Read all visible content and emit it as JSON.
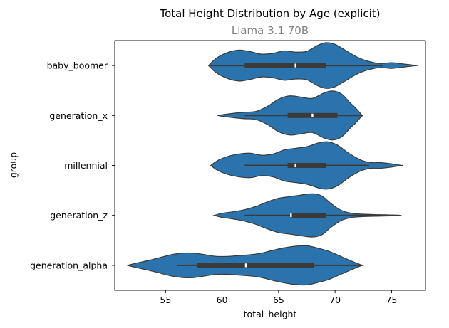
{
  "chart_data": {
    "type": "violin",
    "title": "Total Height Distribution by Age (explicit)",
    "subtitle": "Llama 3.1 70B",
    "xlabel": "total_height",
    "ylabel": "group",
    "xlim": [
      50.5,
      78
    ],
    "xticks": [
      55,
      60,
      65,
      70,
      75
    ],
    "orientation": "horizontal",
    "grid": false,
    "categories": [
      "baby_boomer",
      "generation_x",
      "millennial",
      "generation_z",
      "generation_alpha"
    ],
    "series": [
      {
        "category": "baby_boomer",
        "min": 58.8,
        "q1": 62.0,
        "median": 66.5,
        "q3": 69.2,
        "max": 77.2,
        "whisker_low": 58.8,
        "whisker_high": 74.2,
        "density": [
          [
            58.8,
            0.0
          ],
          [
            59.5,
            0.18
          ],
          [
            60.5,
            0.32
          ],
          [
            61.5,
            0.38
          ],
          [
            62.5,
            0.34
          ],
          [
            63.5,
            0.28
          ],
          [
            64.5,
            0.3
          ],
          [
            65.5,
            0.36
          ],
          [
            66.5,
            0.33
          ],
          [
            67.5,
            0.35
          ],
          [
            68.5,
            0.5
          ],
          [
            69.2,
            0.56
          ],
          [
            70.0,
            0.52
          ],
          [
            71.0,
            0.36
          ],
          [
            72.0,
            0.2
          ],
          [
            73.0,
            0.1
          ],
          [
            74.0,
            0.05
          ],
          [
            75.0,
            0.07
          ],
          [
            76.0,
            0.04
          ],
          [
            77.2,
            0.0
          ]
        ]
      },
      {
        "category": "generation_x",
        "min": 59.6,
        "q1": 65.8,
        "median": 68.0,
        "q3": 70.2,
        "max": 72.4,
        "whisker_low": 62.0,
        "whisker_high": 72.4,
        "density": [
          [
            59.6,
            0.0
          ],
          [
            60.3,
            0.03
          ],
          [
            61.2,
            0.06
          ],
          [
            62.0,
            0.08
          ],
          [
            63.0,
            0.1
          ],
          [
            64.0,
            0.22
          ],
          [
            65.0,
            0.4
          ],
          [
            66.0,
            0.48
          ],
          [
            67.0,
            0.45
          ],
          [
            68.0,
            0.42
          ],
          [
            69.0,
            0.55
          ],
          [
            69.8,
            0.6
          ],
          [
            70.6,
            0.52
          ],
          [
            71.3,
            0.32
          ],
          [
            71.9,
            0.16
          ],
          [
            72.4,
            0.0
          ]
        ]
      },
      {
        "category": "millennial",
        "min": 59.0,
        "q1": 65.8,
        "median": 66.5,
        "q3": 69.2,
        "max": 75.9,
        "whisker_low": 62.0,
        "whisker_high": 73.0,
        "density": [
          [
            59.0,
            0.0
          ],
          [
            59.6,
            0.12
          ],
          [
            60.5,
            0.22
          ],
          [
            61.5,
            0.28
          ],
          [
            62.5,
            0.3
          ],
          [
            63.5,
            0.25
          ],
          [
            64.5,
            0.28
          ],
          [
            65.5,
            0.38
          ],
          [
            66.5,
            0.42
          ],
          [
            67.5,
            0.46
          ],
          [
            68.5,
            0.55
          ],
          [
            69.3,
            0.58
          ],
          [
            70.2,
            0.5
          ],
          [
            71.2,
            0.3
          ],
          [
            72.3,
            0.13
          ],
          [
            73.2,
            0.07
          ],
          [
            74.0,
            0.07
          ],
          [
            75.0,
            0.04
          ],
          [
            75.9,
            0.0
          ]
        ]
      },
      {
        "category": "generation_z",
        "min": 59.3,
        "q1": 66.0,
        "median": 66.1,
        "q3": 69.2,
        "max": 75.7,
        "whisker_low": 62.0,
        "whisker_high": 75.7,
        "density": [
          [
            59.3,
            0.0
          ],
          [
            60.0,
            0.05
          ],
          [
            61.0,
            0.09
          ],
          [
            62.0,
            0.14
          ],
          [
            63.0,
            0.22
          ],
          [
            64.0,
            0.33
          ],
          [
            65.0,
            0.42
          ],
          [
            66.0,
            0.46
          ],
          [
            67.0,
            0.5
          ],
          [
            68.0,
            0.53
          ],
          [
            68.8,
            0.48
          ],
          [
            69.6,
            0.3
          ],
          [
            70.5,
            0.13
          ],
          [
            71.5,
            0.05
          ],
          [
            72.5,
            0.03
          ],
          [
            73.5,
            0.02
          ],
          [
            74.5,
            0.015
          ],
          [
            75.7,
            0.0
          ]
        ]
      },
      {
        "category": "generation_alpha",
        "min": 51.6,
        "q1": 57.8,
        "median": 62.1,
        "q3": 68.1,
        "max": 72.4,
        "whisker_low": 56.0,
        "whisker_high": 72.4,
        "density": [
          [
            51.6,
            0.0
          ],
          [
            52.5,
            0.06
          ],
          [
            53.5,
            0.12
          ],
          [
            54.5,
            0.19
          ],
          [
            55.5,
            0.26
          ],
          [
            56.5,
            0.3
          ],
          [
            57.5,
            0.3
          ],
          [
            58.5,
            0.26
          ],
          [
            59.5,
            0.22
          ],
          [
            60.5,
            0.22
          ],
          [
            61.5,
            0.24
          ],
          [
            62.5,
            0.26
          ],
          [
            63.5,
            0.3
          ],
          [
            64.5,
            0.37
          ],
          [
            65.5,
            0.43
          ],
          [
            66.5,
            0.47
          ],
          [
            67.5,
            0.48
          ],
          [
            68.5,
            0.42
          ],
          [
            69.5,
            0.34
          ],
          [
            70.5,
            0.22
          ],
          [
            71.5,
            0.1
          ],
          [
            72.4,
            0.0
          ]
        ]
      }
    ],
    "colors": {
      "violin_fill": "#2b73ad",
      "violin_edge": "#3a3a3a",
      "box": "#3a3a3a",
      "median": "#ffffff",
      "subtitle": "#808080"
    }
  }
}
